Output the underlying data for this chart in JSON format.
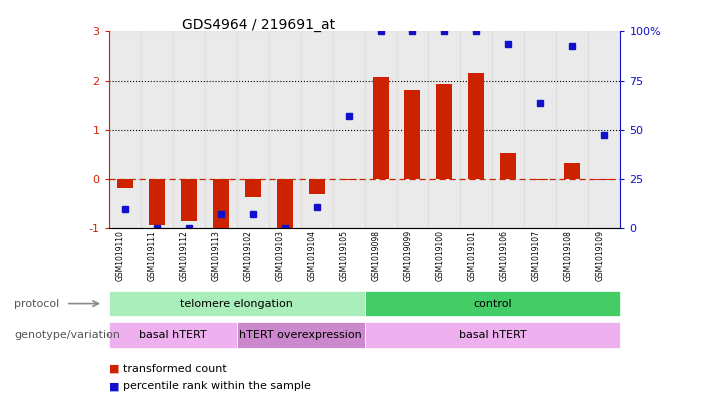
{
  "title": "GDS4964 / 219691_at",
  "samples": [
    "GSM1019110",
    "GSM1019111",
    "GSM1019112",
    "GSM1019113",
    "GSM1019102",
    "GSM1019103",
    "GSM1019104",
    "GSM1019105",
    "GSM1019098",
    "GSM1019099",
    "GSM1019100",
    "GSM1019101",
    "GSM1019106",
    "GSM1019107",
    "GSM1019108",
    "GSM1019109"
  ],
  "bar_values": [
    -0.18,
    -0.95,
    -0.85,
    -1.0,
    -0.38,
    -1.0,
    -0.3,
    -0.02,
    2.07,
    1.8,
    1.93,
    2.15,
    0.52,
    -0.02,
    0.32,
    -0.02
  ],
  "dot_values": [
    -0.62,
    -1.0,
    -1.0,
    -0.72,
    -0.72,
    -1.0,
    -0.58,
    1.27,
    3.0,
    3.0,
    3.0,
    3.0,
    2.75,
    1.55,
    2.7,
    0.9
  ],
  "bar_color": "#cc2200",
  "dot_color": "#1111cc",
  "ylim": [
    -1.0,
    3.0
  ],
  "yticks_left": [
    -1,
    0,
    1,
    2,
    3
  ],
  "yticks_right": [
    0,
    25,
    50,
    75,
    100
  ],
  "dotted_lines": [
    1.0,
    2.0
  ],
  "protocol_labels": [
    {
      "label": "telomere elongation",
      "start": 0,
      "end": 7,
      "color": "#aaeebb"
    },
    {
      "label": "control",
      "start": 8,
      "end": 15,
      "color": "#44cc66"
    }
  ],
  "genotype_labels": [
    {
      "label": "basal hTERT",
      "start": 0,
      "end": 3,
      "color": "#eeb0ee"
    },
    {
      "label": "hTERT overexpression",
      "start": 4,
      "end": 7,
      "color": "#cc88cc"
    },
    {
      "label": "basal hTERT",
      "start": 8,
      "end": 15,
      "color": "#eeb0ee"
    }
  ],
  "legend_items": [
    {
      "color": "#cc2200",
      "label": "transformed count"
    },
    {
      "color": "#1111cc",
      "label": "percentile rank within the sample"
    }
  ],
  "right_axis_color": "#1111cc",
  "left_axis_color": "#cc2200",
  "protocol_row_label": "protocol",
  "genotype_row_label": "genotype/variation"
}
